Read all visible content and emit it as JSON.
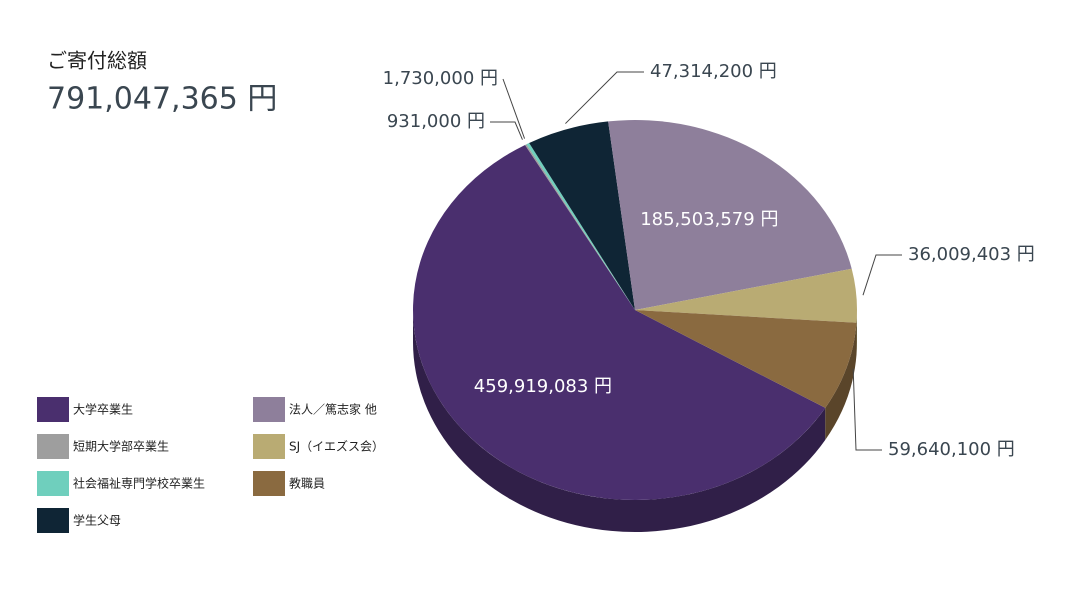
{
  "chart_data": {
    "type": "pie",
    "title": "ご寄付総額",
    "subtitle": "791,047,365 円",
    "categories": [
      "大学卒業生",
      "短期大学部卒業生",
      "社会福祉専門学校卒業生",
      "学生父母",
      "法人／篤志家 他",
      "SJ（イエズス会）",
      "教職員"
    ],
    "values": [
      459919083,
      931000,
      1730000,
      47314200,
      185503579,
      36009403,
      59640100
    ],
    "value_labels": [
      "459,919,083 円",
      "931,000 円",
      "1,730,000 円",
      "47,314,200 円",
      "185,503,579 円",
      "36,009,403 円",
      "59,640,100 円"
    ],
    "colors": [
      "#4a2f6e",
      "#9e9e9e",
      "#6fcfbd",
      "#0f2535",
      "#8e7f9b",
      "#b9ab73",
      "#8a6a40"
    ]
  }
}
